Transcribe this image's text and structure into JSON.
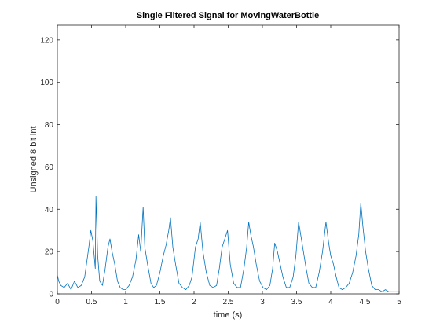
{
  "chart_data": {
    "type": "line",
    "title": "Single Filtered Signal for MovingWaterBottle",
    "xlabel": "time (s)",
    "ylabel": "Unsigned 8 bit int",
    "xlim": [
      0,
      5
    ],
    "ylim": [
      0,
      127
    ],
    "x_ticks": [
      "0",
      "0.5",
      "1",
      "1.5",
      "2",
      "2.5",
      "3",
      "3.5",
      "4",
      "4.5",
      "5"
    ],
    "y_ticks": [
      "0",
      "20",
      "40",
      "60",
      "80",
      "100",
      "120"
    ],
    "grid": false,
    "line_color": "#0072BD",
    "series": [
      {
        "x": [
          0,
          0.02,
          0.05,
          0.1,
          0.15,
          0.2,
          0.25,
          0.3,
          0.35,
          0.4,
          0.43,
          0.46,
          0.49,
          0.52,
          0.555,
          0.565,
          0.59,
          0.62,
          0.66,
          0.7,
          0.74,
          0.77,
          0.8,
          0.84,
          0.88,
          0.92,
          0.96,
          1.0,
          1.05,
          1.1,
          1.15,
          1.19,
          1.22,
          1.255,
          1.28,
          1.32,
          1.37,
          1.41,
          1.45,
          1.5,
          1.55,
          1.59,
          1.63,
          1.655,
          1.69,
          1.73,
          1.78,
          1.83,
          1.88,
          1.93,
          1.97,
          2.02,
          2.06,
          2.09,
          2.13,
          2.18,
          2.23,
          2.28,
          2.33,
          2.37,
          2.41,
          2.45,
          2.49,
          2.53,
          2.58,
          2.63,
          2.68,
          2.73,
          2.77,
          2.8,
          2.83,
          2.87,
          2.91,
          2.96,
          3.01,
          3.06,
          3.11,
          3.15,
          3.18,
          3.22,
          3.26,
          3.3,
          3.35,
          3.4,
          3.45,
          3.49,
          3.53,
          3.57,
          3.6,
          3.64,
          3.68,
          3.73,
          3.78,
          3.83,
          3.88,
          3.93,
          3.97,
          4.0,
          4.04,
          4.08,
          4.12,
          4.17,
          4.22,
          4.27,
          4.32,
          4.37,
          4.41,
          4.44,
          4.47,
          4.51,
          4.55,
          4.6,
          4.65,
          4.7,
          4.75,
          4.8,
          4.85,
          4.9,
          4.95,
          5.0
        ],
        "y": [
          9,
          6,
          4,
          3,
          5,
          2,
          6,
          3,
          4,
          8,
          15,
          22,
          30,
          25,
          12,
          46,
          18,
          6,
          4,
          12,
          22,
          26,
          20,
          14,
          6,
          3,
          2,
          2,
          4,
          8,
          16,
          28,
          20,
          41,
          22,
          14,
          5,
          3,
          4,
          10,
          18,
          23,
          30,
          36,
          22,
          14,
          5,
          3,
          2,
          4,
          8,
          22,
          26,
          34,
          20,
          10,
          4,
          3,
          4,
          12,
          22,
          26,
          30,
          14,
          5,
          3,
          3,
          12,
          22,
          34,
          28,
          22,
          14,
          6,
          3,
          2,
          4,
          12,
          24,
          20,
          14,
          8,
          3,
          3,
          8,
          18,
          34,
          26,
          20,
          12,
          5,
          3,
          3,
          10,
          20,
          34,
          24,
          18,
          14,
          8,
          3,
          2,
          3,
          5,
          10,
          18,
          28,
          43,
          32,
          20,
          12,
          4,
          2,
          2,
          1,
          2,
          1,
          1,
          1,
          1
        ]
      }
    ]
  }
}
